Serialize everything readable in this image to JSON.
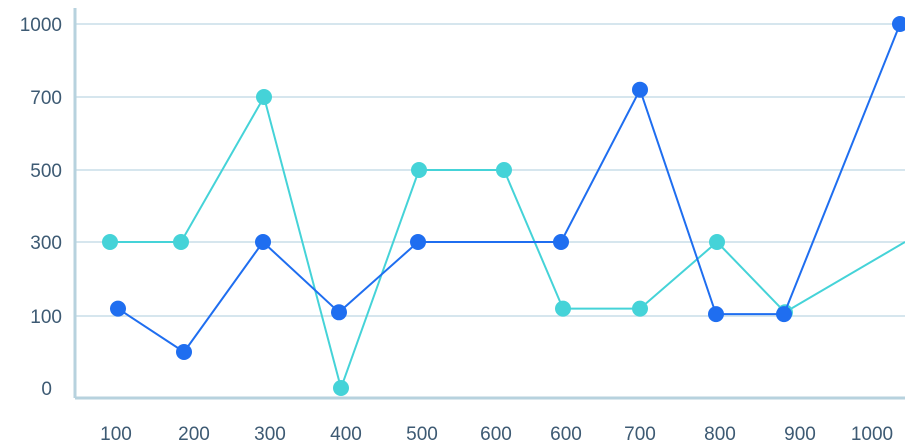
{
  "chart_data": {
    "type": "line",
    "title": "",
    "xlabel": "",
    "ylabel": "",
    "x_ticks": [
      "100",
      "200",
      "300",
      "400",
      "500",
      "600",
      "600",
      "700",
      "800",
      "900",
      "1000"
    ],
    "y_ticks": [
      {
        "label": "0",
        "value": 0
      },
      {
        "label": "100",
        "value": 1
      },
      {
        "label": "300",
        "value": 2
      },
      {
        "label": "500",
        "value": 3
      },
      {
        "label": "700",
        "value": 4
      },
      {
        "label": "1000",
        "value": 5
      }
    ],
    "y_scale_note_values_are_tick_labels": true,
    "grid": true,
    "series": [
      {
        "color": "#1f6ef0",
        "x": [
          100,
          200,
          300,
          400,
          500,
          600,
          700,
          800,
          900,
          1000
        ],
        "values": [
          120,
          50,
          300,
          110,
          300,
          300,
          730,
          105,
          105,
          1000
        ]
      },
      {
        "color": "#45d3d8",
        "x": [
          100,
          200,
          300,
          400,
          500,
          600,
          600,
          700,
          800,
          900,
          1000
        ],
        "values": [
          300,
          300,
          700,
          0,
          500,
          500,
          120,
          120,
          300,
          110,
          300
        ]
      }
    ]
  }
}
